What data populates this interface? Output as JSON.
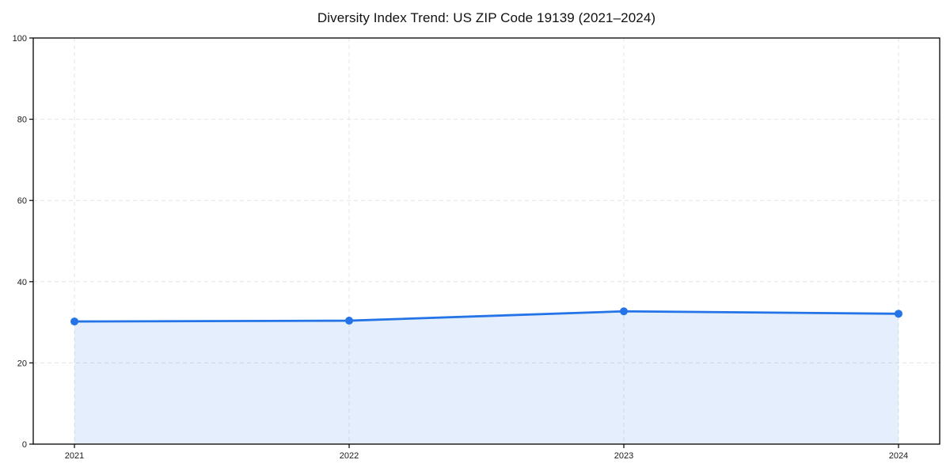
{
  "chart_data": {
    "type": "area",
    "title": "Diversity Index Trend: US ZIP Code 19139 (2021–2024)",
    "x": [
      2021,
      2022,
      2023,
      2024
    ],
    "xtick_labels": [
      "2021",
      "2022",
      "2023",
      "2024"
    ],
    "series": [
      {
        "name": "Diversity Index",
        "values": [
          30.2,
          30.4,
          32.7,
          32.1
        ]
      }
    ],
    "xlabel": "",
    "ylabel": "",
    "ylim": [
      0,
      100
    ],
    "xlim": [
      2020.85,
      2024.15
    ],
    "yticks": [
      0,
      20,
      40,
      60,
      80,
      100
    ],
    "grid": true,
    "grid_style": "dashed",
    "legend": "none",
    "marker": "circle",
    "colors": {
      "line": "#2474e8",
      "marker": "#2474e8",
      "fill": "#2474e8",
      "fill_opacity": 0.12,
      "grid": "#e4e4e4",
      "spine": "#000000",
      "text": "#1a1a1a",
      "background": "#ffffff"
    }
  }
}
